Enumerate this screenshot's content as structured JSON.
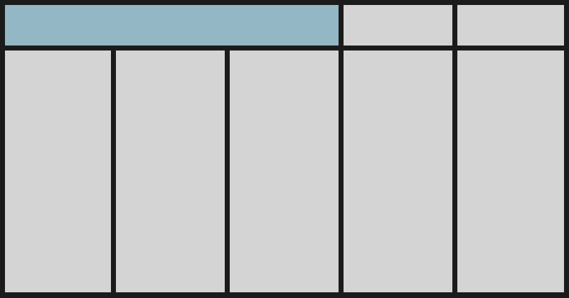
{
  "colors": {
    "background": "#1b1b1b",
    "panel": "#d4d4d4",
    "highlight": "#93b7c5"
  },
  "grid": {
    "top_row": [
      {
        "id": "c-wide",
        "highlighted": true
      },
      {
        "id": "c-t4",
        "highlighted": false
      },
      {
        "id": "c-t5",
        "highlighted": false
      }
    ],
    "bottom_row": [
      {
        "id": "c-b1",
        "highlighted": false
      },
      {
        "id": "c-b2",
        "highlighted": false
      },
      {
        "id": "c-b3",
        "highlighted": false
      },
      {
        "id": "c-b4",
        "highlighted": false
      },
      {
        "id": "c-b5",
        "highlighted": false
      }
    ]
  }
}
